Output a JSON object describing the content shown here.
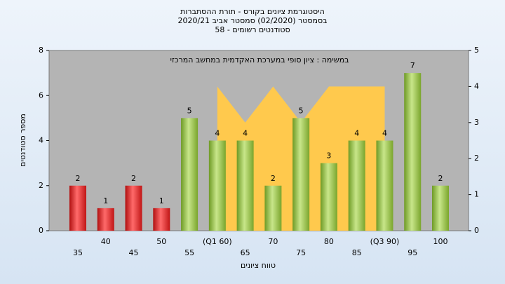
{
  "chart_data": {
    "type": "bar",
    "title": "היסטוגרמת ציונים בקורס - תורת ההסתברות",
    "subtitle": "בסמסטר  (02/2020)  סמסטר אביב 2020/21",
    "subtitle2": "סטודנטים רשומים - 58",
    "annotation": "במשימה : ציון סופי במערכת האקדמית במחשב המרכזי",
    "ylabel": "מספר סטודנטים",
    "xlabel": "טווח ציונים",
    "categories": [
      "35",
      "40",
      "45",
      "50",
      "55",
      "(Q1 60)",
      "65",
      "70",
      "75",
      "80",
      "85",
      "(Q3 90)",
      "95",
      "100"
    ],
    "series": [
      {
        "type": "bar",
        "colors": [
          "#e02020",
          "#e02020",
          "#e02020",
          "#e02020",
          "#8fbc3a",
          "#8fbc3a",
          "#8fbc3a",
          "#8fbc3a",
          "#8fbc3a",
          "#8fbc3a",
          "#8fbc3a",
          "#8fbc3a",
          "#8fbc3a",
          "#8fbc3a"
        ],
        "values": [
          2,
          1,
          2,
          1,
          5,
          4,
          4,
          2,
          5,
          3,
          4,
          4,
          7,
          2
        ]
      },
      {
        "type": "area",
        "axis": "y2",
        "color": "#ffc94d",
        "values": [
          null,
          null,
          null,
          null,
          null,
          4,
          3,
          4,
          3,
          4,
          4,
          4,
          null,
          null
        ]
      }
    ],
    "ylim": [
      0,
      8
    ],
    "yticks": [
      0,
      2,
      4,
      6,
      8
    ],
    "y2lim": [
      0,
      5
    ],
    "y2ticks": [
      0,
      1,
      2,
      3,
      4,
      5
    ]
  }
}
